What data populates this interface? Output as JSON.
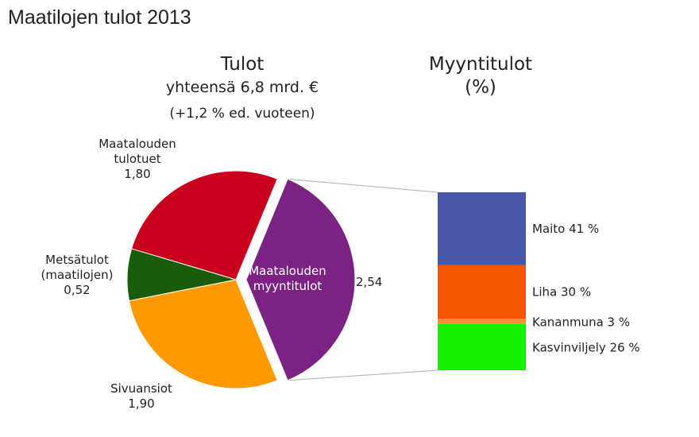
{
  "title": "Maatilojen tulot 2013",
  "chart_data": [
    {
      "type": "pie",
      "title": "Tulot",
      "subtitle": "yhteensä 6,8 mrd. €",
      "note": "(+1,2 % ed. vuoteen)",
      "slices": [
        {
          "label_lines": [
            "Maatalouden",
            "tulotuet"
          ],
          "value_label": "1,80",
          "value": 1.8,
          "color": "#c8001e"
        },
        {
          "label_lines": [
            "Maatalouden",
            "myyntitulot"
          ],
          "value_label": "2,54",
          "value": 2.54,
          "color": "#7b2282",
          "exploded": true
        },
        {
          "label_lines": [
            "Sivuansiot"
          ],
          "value_label": "1,90",
          "value": 1.9,
          "color": "#ff9900"
        },
        {
          "label_lines": [
            "Metsätulot",
            "(maatilojen)"
          ],
          "value_label": "0,52",
          "value": 0.52,
          "color": "#1a5c0a"
        }
      ]
    },
    {
      "type": "bar",
      "stacked": true,
      "title_lines": [
        "Myyntitulot",
        "(%)"
      ],
      "segments": [
        {
          "label": "Maito 41 %",
          "value": 41,
          "color": "#4957a8"
        },
        {
          "label": "Liha 30 %",
          "value": 30,
          "color": "#f35400"
        },
        {
          "label": "Kananmuna 3 %",
          "value": 3,
          "color": "#ff8c3c"
        },
        {
          "label": "Kasvinviljely 26 %",
          "value": 26,
          "color": "#14f000"
        }
      ]
    }
  ]
}
